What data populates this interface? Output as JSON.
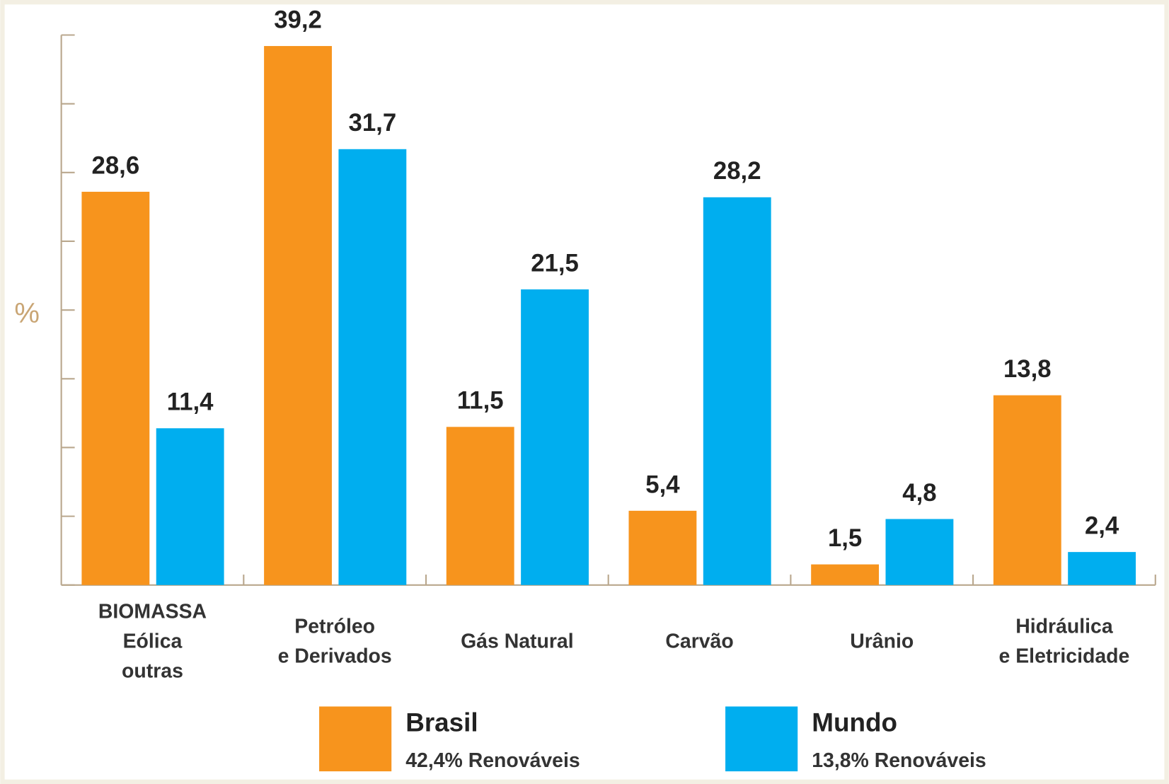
{
  "chart_data": {
    "type": "bar",
    "y_label": "%",
    "categories": [
      [
        "BIOMASSA",
        "Eólica",
        "outras"
      ],
      [
        "Petróleo",
        "e Derivados"
      ],
      [
        "Gás Natural"
      ],
      [
        "Carvão"
      ],
      [
        "Urânio"
      ],
      [
        "Hidráulica",
        "e Eletricidade"
      ]
    ],
    "series": [
      {
        "name": "Brasil",
        "legend_note": "42,4% Renováveis",
        "color": "#f7941d",
        "values": [
          28.6,
          39.2,
          11.5,
          5.4,
          1.5,
          13.8
        ],
        "value_labels": [
          "28,6",
          "39,2",
          "11,5",
          "5,4",
          "1,5",
          "13,8"
        ]
      },
      {
        "name": "Mundo",
        "legend_note": "13,8% Renováveis",
        "color": "#00aeef",
        "values": [
          11.4,
          31.7,
          21.5,
          28.2,
          4.8,
          2.4
        ],
        "value_labels": [
          "11,4",
          "31,7",
          "21,5",
          "28,2",
          "4,8",
          "2,4"
        ]
      }
    ],
    "ylim": [
      0,
      40
    ],
    "yticks": [
      0,
      5,
      10,
      15,
      20,
      25,
      30,
      35,
      40
    ]
  }
}
